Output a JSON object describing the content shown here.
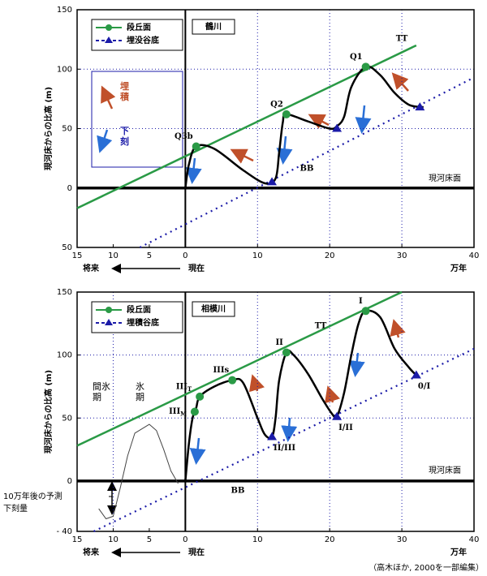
{
  "chart_data": [
    {
      "type": "line",
      "title": "鶴川",
      "ylabel": "現河床からの比高 (m)",
      "xlabel": "万年",
      "future_label": "将来",
      "present_label": "現在",
      "xlim": [
        -15,
        40
      ],
      "xticks": [
        {
          "value": -15,
          "label": "15"
        },
        {
          "value": -10,
          "label": "10"
        },
        {
          "value": -5,
          "label": "5"
        },
        0,
        10,
        20,
        30,
        40
      ],
      "ylim": [
        -50,
        150
      ],
      "yticks": [
        {
          "value": -50,
          "label": "50"
        },
        0,
        50,
        100,
        150
      ],
      "xgrid": [
        10,
        20,
        30
      ],
      "ygrid": [
        50,
        100
      ],
      "series": [
        {
          "name": "段丘面",
          "color": "#2a9a46",
          "style": "solid",
          "marker": "circle",
          "x": [
            -15,
            32
          ],
          "values": [
            -17,
            120
          ],
          "points": {
            "x": [
              1.5,
              14,
              25
            ],
            "values": [
              35,
              62,
              102
            ],
            "labels": [
              "Q3b",
              "Q2",
              "Q1"
            ]
          }
        },
        {
          "name": "埋没谷底",
          "color": "#1b1ba8",
          "style": "dotted",
          "marker": "triangle",
          "x": [
            -6.3,
            40
          ],
          "values": [
            -50,
            93
          ],
          "points": {
            "x": [
              12,
              21,
              32.5
            ],
            "values": [
              5,
              50,
              68
            ]
          }
        }
      ],
      "profile": {
        "color": "#000000",
        "x": [
          0,
          0.5,
          1.5,
          4,
          8,
          11,
          12.5,
          13,
          13.5,
          14,
          17,
          20,
          21,
          22,
          23,
          25,
          27,
          29,
          31,
          33
        ],
        "values": [
          0,
          20,
          35,
          33,
          15,
          4,
          8,
          30,
          55,
          62,
          56,
          50,
          52,
          60,
          85,
          102,
          95,
          80,
          70,
          68
        ]
      },
      "legend_arrows": [
        "埋積",
        "下刻"
      ],
      "annotations": [
        "現河床面",
        "BB",
        "TT"
      ]
    },
    {
      "type": "line",
      "title": "相模川",
      "ylabel": "現河床からの比高 (m)",
      "xlabel": "万年",
      "future_label": "将来",
      "present_label": "現在",
      "xlim": [
        -15,
        40
      ],
      "xticks": [
        {
          "value": -15,
          "label": "15"
        },
        {
          "value": -10,
          "label": "10"
        },
        {
          "value": -5,
          "label": "5"
        },
        0,
        10,
        20,
        30,
        40
      ],
      "ylim": [
        -40,
        150
      ],
      "yticks": [
        {
          "value": -40,
          "label": "- 40"
        },
        0,
        50,
        100,
        150
      ],
      "xgrid": [
        -10,
        10,
        20,
        30
      ],
      "ygrid": [
        50,
        100
      ],
      "series": [
        {
          "name": "段丘面",
          "color": "#2a9a46",
          "style": "solid",
          "marker": "circle",
          "x": [
            -15,
            30
          ],
          "values": [
            28,
            150
          ],
          "points": {
            "x": [
              1.3,
              2,
              6.5,
              14,
              25
            ],
            "values": [
              55,
              67,
              80,
              102,
              135
            ],
            "labels": [
              "III",
              "III",
              "IIIs",
              "II",
              "I"
            ],
            "label_subs": [
              "M",
              "T",
              null,
              null,
              null
            ]
          }
        },
        {
          "name": "埋積谷底",
          "color": "#1b1ba8",
          "style": "dotted",
          "marker": "triangle",
          "x": [
            -12.7,
            40
          ],
          "values": [
            -40,
            105
          ],
          "points": {
            "x": [
              12,
              21,
              32
            ],
            "values": [
              35,
              51,
              84
            ],
            "labels": [
              "II/III",
              "I/II",
              "0/I"
            ]
          }
        }
      ],
      "profile": {
        "color": "#000000",
        "x": [
          0,
          0.5,
          1,
          1.5,
          2,
          4,
          6.5,
          8,
          10,
          11,
          12,
          12.5,
          13,
          14,
          15,
          17,
          19,
          20.5,
          21,
          22,
          23,
          24,
          25,
          27,
          29,
          31,
          32
        ],
        "values": [
          0,
          30,
          50,
          58,
          67,
          75,
          80,
          78,
          50,
          37,
          35,
          50,
          80,
          102,
          100,
          85,
          65,
          52,
          51,
          70,
          100,
          125,
          135,
          130,
          105,
          90,
          84
        ]
      },
      "cycle": {
        "x": [
          -12,
          -11,
          -10,
          -9,
          -8,
          -7,
          -5,
          -4,
          -3,
          -2,
          -1
        ],
        "values": [
          -22,
          -30,
          -28,
          -5,
          20,
          38,
          45,
          40,
          25,
          8,
          -2
        ]
      },
      "glacial_labels": [
        "間氷期",
        "氷期"
      ],
      "prediction_label": [
        "10万年後の予測",
        "下刻量"
      ],
      "annotations": [
        "現河床面",
        "BB",
        "TT"
      ]
    }
  ],
  "source": "（高木ほか, 2000を一部編集）"
}
